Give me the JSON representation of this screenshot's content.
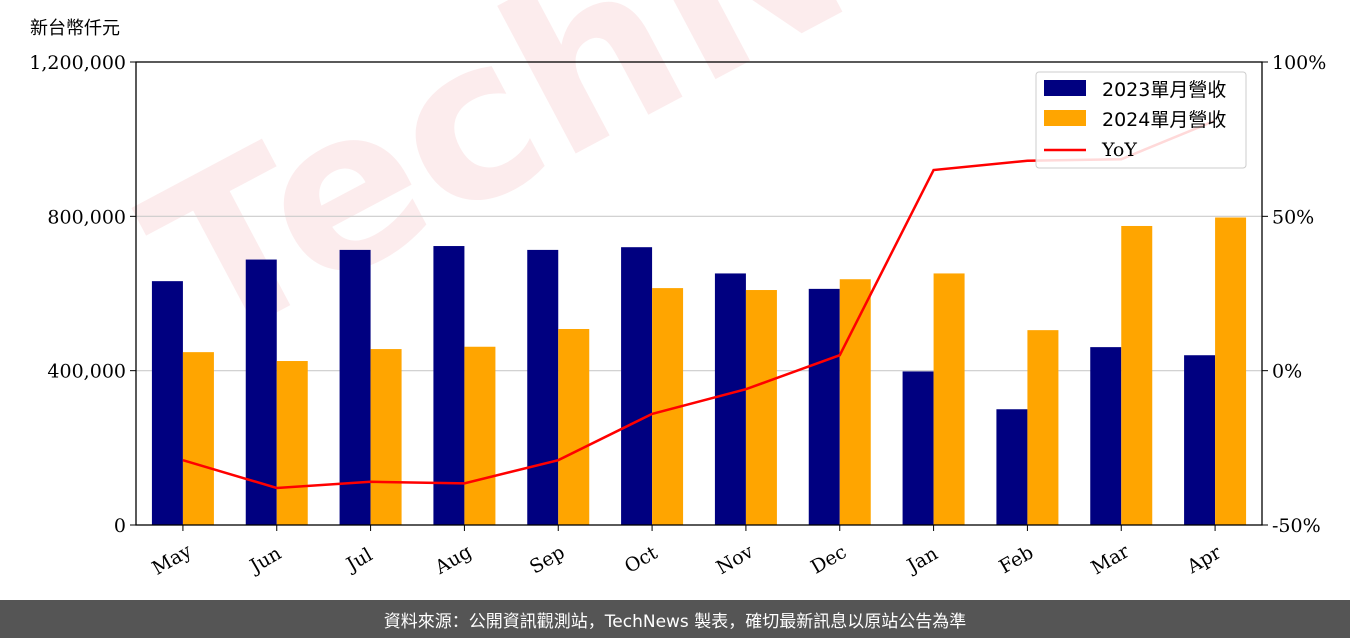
{
  "unit_label": "新台幣仟元",
  "watermark": "TechNews",
  "footer": "資料來源：公開資訊觀測站，TechNews 製表，確切最新訊息以原站公告為準",
  "colors": {
    "series2023": "#000080",
    "series2024": "#FFA500",
    "yoy": "#FF0000"
  },
  "chart_data": {
    "type": "bar",
    "categories": [
      "May",
      "Jun",
      "Jul",
      "Aug",
      "Sep",
      "Oct",
      "Nov",
      "Dec",
      "Jan",
      "Feb",
      "Mar",
      "Apr"
    ],
    "series": [
      {
        "name": "2023單月營收",
        "values": [
          632000,
          688000,
          713000,
          723000,
          713000,
          720000,
          652000,
          612000,
          398000,
          300000,
          461000,
          440000
        ]
      },
      {
        "name": "2024單月營收",
        "values": [
          448000,
          425000,
          456000,
          462000,
          508000,
          614000,
          609000,
          637000,
          652000,
          505000,
          775000,
          797000
        ]
      }
    ],
    "line_series": {
      "name": "YoY",
      "axis": "right",
      "values": [
        -29,
        -38,
        -36,
        -36.5,
        -29,
        -14,
        -6,
        5,
        65,
        68,
        68.5,
        81
      ]
    },
    "ylim": [
      0,
      1200000
    ],
    "yticks": [
      "0",
      "400,000",
      "800,000",
      "1,200,000"
    ],
    "yticks_values": [
      0,
      400000,
      800000,
      1200000
    ],
    "y2lim": [
      -50,
      100
    ],
    "y2ticks": [
      "-50%",
      "0%",
      "50%",
      "100%"
    ],
    "y2ticks_values": [
      -50,
      0,
      50,
      100
    ],
    "grid": "horizontal",
    "legend_placement": "top-right"
  }
}
